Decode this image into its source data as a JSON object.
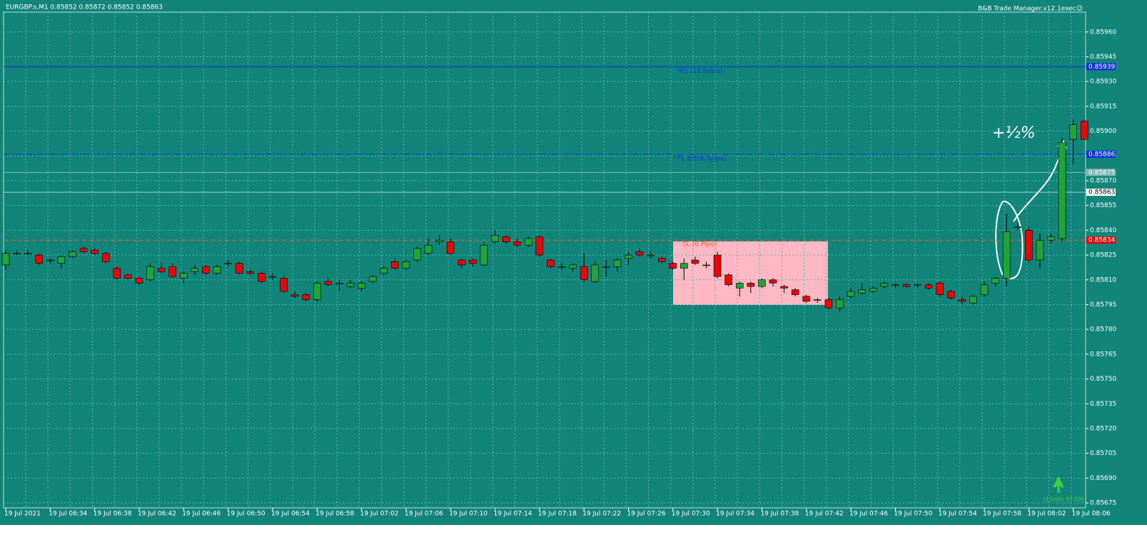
{
  "chart_data": {
    "type": "candlestick",
    "title": "EURGBP.s,M1  0.85852 0.85872 0.85852 0.85863",
    "subtitle": "B&B Trade Manager.v12.1exec☺",
    "categories": [
      "19 Jul 2021",
      null,
      null,
      null,
      "19 Jul 06:34",
      null,
      null,
      null,
      "19 Jul 06:38",
      null,
      null,
      null,
      "19 Jul 06:42",
      null,
      null,
      null,
      "19 Jul 06:46",
      null,
      null,
      null,
      "19 Jul 06:50",
      null,
      null,
      null,
      "19 Jul 06:54",
      null,
      null,
      null,
      "19 Jul 06:58",
      null,
      null,
      null,
      "19 Jul 07:02",
      null,
      null,
      null,
      "19 Jul 07:06",
      null,
      null,
      null,
      "19 Jul 07:10",
      null,
      null,
      null,
      "19 Jul 07:14",
      null,
      null,
      null,
      "19 Jul 07:18",
      null,
      null,
      null,
      "19 Jul 07:22",
      null,
      null,
      null,
      "19 Jul 07:26",
      null,
      null,
      null,
      "19 Jul 07:30",
      null,
      null,
      null,
      "19 Jul 07:34",
      null,
      null,
      null,
      "19 Jul 07:38",
      null,
      null,
      null,
      "19 Jul 07:42",
      null,
      null,
      null,
      "19 Jul 07:46",
      null,
      null,
      null,
      "19 Jul 07:50",
      null,
      null,
      null,
      "19 Jul 07:54",
      null,
      null,
      null,
      "19 Jul 07:58",
      null,
      null,
      null,
      "19 Jul 08:02",
      null,
      null,
      null,
      "19 Jul 08:06",
      null
    ],
    "open": [
      0.85819,
      0.85826,
      0.85826,
      0.85825,
      0.85822,
      0.8582,
      0.85824,
      0.85829,
      0.85828,
      0.85826,
      0.85817,
      0.85813,
      0.85811,
      0.8581,
      0.85817,
      0.85818,
      0.85811,
      0.85815,
      0.85818,
      0.85814,
      0.8582,
      0.8582,
      0.85815,
      0.85814,
      0.85812,
      0.85811,
      0.85801,
      0.85801,
      0.85798,
      0.85809,
      0.85808,
      0.85806,
      0.85805,
      0.85809,
      0.85814,
      0.85821,
      0.85817,
      0.85822,
      0.85826,
      0.85833,
      0.85833,
      0.85822,
      0.85822,
      0.85819,
      0.85833,
      0.85836,
      0.85833,
      0.85831,
      0.85836,
      0.85822,
      0.85818,
      0.85817,
      0.85818,
      0.85809,
      0.85818,
      0.85818,
      0.85823,
      0.85827,
      0.85825,
      0.85823,
      0.8582,
      0.85817,
      0.85822,
      0.85819,
      0.85825,
      0.85813,
      0.85805,
      0.85808,
      0.85806,
      0.8581,
      0.85806,
      0.85804,
      0.858,
      0.85798,
      0.85798,
      0.85793,
      0.858,
      0.85802,
      0.85803,
      0.85806,
      0.85807,
      0.85807,
      0.85807,
      0.85807,
      0.85808,
      0.85803,
      0.85798,
      0.85796,
      0.85801,
      0.85808,
      0.85811,
      0.85842,
      0.8584,
      0.85822,
      0.85834,
      0.85835,
      0.85895,
      0.85906
    ],
    "high": [
      0.85828,
      0.85828,
      0.85828,
      0.85826,
      0.85823,
      0.85825,
      0.85828,
      0.8583,
      0.85829,
      0.85827,
      0.85818,
      0.85814,
      0.85812,
      0.8582,
      0.8582,
      0.8582,
      0.85815,
      0.85819,
      0.85819,
      0.85819,
      0.85822,
      0.85821,
      0.85816,
      0.85815,
      0.85814,
      0.85813,
      0.85803,
      0.85802,
      0.85809,
      0.85811,
      0.8581,
      0.8581,
      0.85809,
      0.85813,
      0.85818,
      0.85823,
      0.85822,
      0.8583,
      0.85835,
      0.85837,
      0.85835,
      0.85823,
      0.85823,
      0.85833,
      0.8584,
      0.85837,
      0.85835,
      0.85836,
      0.85837,
      0.85823,
      0.8582,
      0.8582,
      0.85826,
      0.85821,
      0.85822,
      0.85823,
      0.85827,
      0.85829,
      0.85827,
      0.85824,
      0.85821,
      0.85823,
      0.85824,
      0.85821,
      0.85827,
      0.85814,
      0.85809,
      0.85809,
      0.85811,
      0.85811,
      0.85807,
      0.85805,
      0.85801,
      0.85799,
      0.85799,
      0.858,
      0.85805,
      0.85808,
      0.85806,
      0.85809,
      0.85808,
      0.85808,
      0.85808,
      0.85808,
      0.85809,
      0.85804,
      0.858,
      0.85801,
      0.85809,
      0.85812,
      0.8585,
      0.85845,
      0.85842,
      0.85838,
      0.85838,
      0.85896,
      0.85907,
      0.85907
    ],
    "low": [
      0.85816,
      0.85825,
      0.85825,
      0.85819,
      0.8582,
      0.85817,
      0.85823,
      0.85826,
      0.85825,
      0.8582,
      0.8581,
      0.8581,
      0.85807,
      0.85809,
      0.85814,
      0.85811,
      0.85808,
      0.85813,
      0.85813,
      0.85813,
      0.85818,
      0.85813,
      0.85813,
      0.85808,
      0.8581,
      0.85802,
      0.85799,
      0.85797,
      0.85797,
      0.85806,
      0.85803,
      0.85805,
      0.85803,
      0.85808,
      0.85813,
      0.85816,
      0.85816,
      0.85821,
      0.85825,
      0.85831,
      0.85825,
      0.85817,
      0.85818,
      0.85818,
      0.85832,
      0.85832,
      0.8583,
      0.8583,
      0.85824,
      0.85817,
      0.85816,
      0.85815,
      0.85809,
      0.85808,
      0.85812,
      0.85815,
      0.85819,
      0.85824,
      0.85823,
      0.8582,
      0.85816,
      0.8581,
      0.85819,
      0.85817,
      0.85811,
      0.85806,
      0.858,
      0.85802,
      0.85805,
      0.85806,
      0.85802,
      0.858,
      0.85796,
      0.85796,
      0.85792,
      0.85791,
      0.85799,
      0.85801,
      0.85802,
      0.85805,
      0.85805,
      0.85805,
      0.85805,
      0.85804,
      0.858,
      0.85798,
      0.85795,
      0.85795,
      0.858,
      0.85806,
      0.85806,
      0.8584,
      0.85821,
      0.85817,
      0.85832,
      0.85833,
      0.8588,
      0.85895
    ],
    "close": [
      0.85826,
      0.85826,
      0.85826,
      0.8582,
      0.85822,
      0.85824,
      0.85827,
      0.85827,
      0.85826,
      0.85821,
      0.85811,
      0.85811,
      0.85808,
      0.85818,
      0.85815,
      0.85812,
      0.85814,
      0.85817,
      0.85814,
      0.85818,
      0.8582,
      0.85814,
      0.85814,
      0.85809,
      0.85812,
      0.85803,
      0.858,
      0.85798,
      0.85808,
      0.85807,
      0.85808,
      0.85808,
      0.85808,
      0.85812,
      0.85817,
      0.85817,
      0.85821,
      0.85829,
      0.85831,
      0.85834,
      0.85826,
      0.85819,
      0.8582,
      0.85831,
      0.85837,
      0.85833,
      0.85831,
      0.85835,
      0.85825,
      0.85818,
      0.85818,
      0.85819,
      0.8581,
      0.85819,
      0.85818,
      0.85822,
      0.85825,
      0.85825,
      0.85825,
      0.85821,
      0.85817,
      0.8582,
      0.8582,
      0.85819,
      0.85812,
      0.85807,
      0.85808,
      0.85806,
      0.8581,
      0.85808,
      0.85805,
      0.85801,
      0.85797,
      0.85798,
      0.85793,
      0.85798,
      0.85803,
      0.85804,
      0.85805,
      0.85808,
      0.85807,
      0.85806,
      0.85807,
      0.85805,
      0.85801,
      0.85799,
      0.85797,
      0.858,
      0.85807,
      0.85811,
      0.85839,
      0.85842,
      0.85822,
      0.85834,
      0.85836,
      0.85893,
      0.85904,
      0.85895
    ],
    "up_color": "#22a33a",
    "down_color": "#e3080a",
    "ylim": [
      0.85672,
      0.85972
    ],
    "yticks": [
      {
        "value": 0.8596,
        "label": "0.85960"
      },
      0.85945,
      {
        "value": 0.8593,
        "label": "0.85930"
      },
      0.85915,
      {
        "value": 0.859,
        "label": "0.85900"
      },
      0.85885,
      {
        "value": 0.8587,
        "label": "0.85870"
      },
      0.85855,
      {
        "value": 0.8584,
        "label": "0.85840"
      },
      0.85825,
      {
        "value": 0.8581,
        "label": "0.85810"
      },
      0.85795,
      {
        "value": 0.8578,
        "label": "0.85780"
      },
      0.85765,
      {
        "value": 0.8575,
        "label": "0.85750"
      },
      0.85735,
      {
        "value": 0.8572,
        "label": "0.85720"
      },
      0.85705,
      {
        "value": 0.8569,
        "label": "0.85690"
      },
      0.85675
    ],
    "grid": true,
    "levels": [
      {
        "name": "TP2 (10.6pips)",
        "value": 0.85939,
        "color": "#1030e0",
        "style": "solid",
        "tag_color": "#1030e0"
      },
      {
        "name": "TP1 B/E(8.5pips)",
        "value": 0.85886,
        "color": "#1030e0",
        "style": "dashdot",
        "tag_color": "#1030e0"
      },
      {
        "value": 0.85875,
        "color": "#7fb8b2",
        "style": "solid",
        "tag_color": "#7fb8b2"
      },
      {
        "value": 0.85863,
        "color": "#9fd0cb",
        "style": "solid",
        "tag_color": "#ffffff"
      },
      {
        "name": "SL (0 Pips)",
        "value": 0.85834,
        "color": "#ff5a1a",
        "style": "dashed",
        "tag_color": "#e3080a"
      }
    ],
    "annotation": "+½%",
    "signal_label": "(15min 07:59)"
  }
}
